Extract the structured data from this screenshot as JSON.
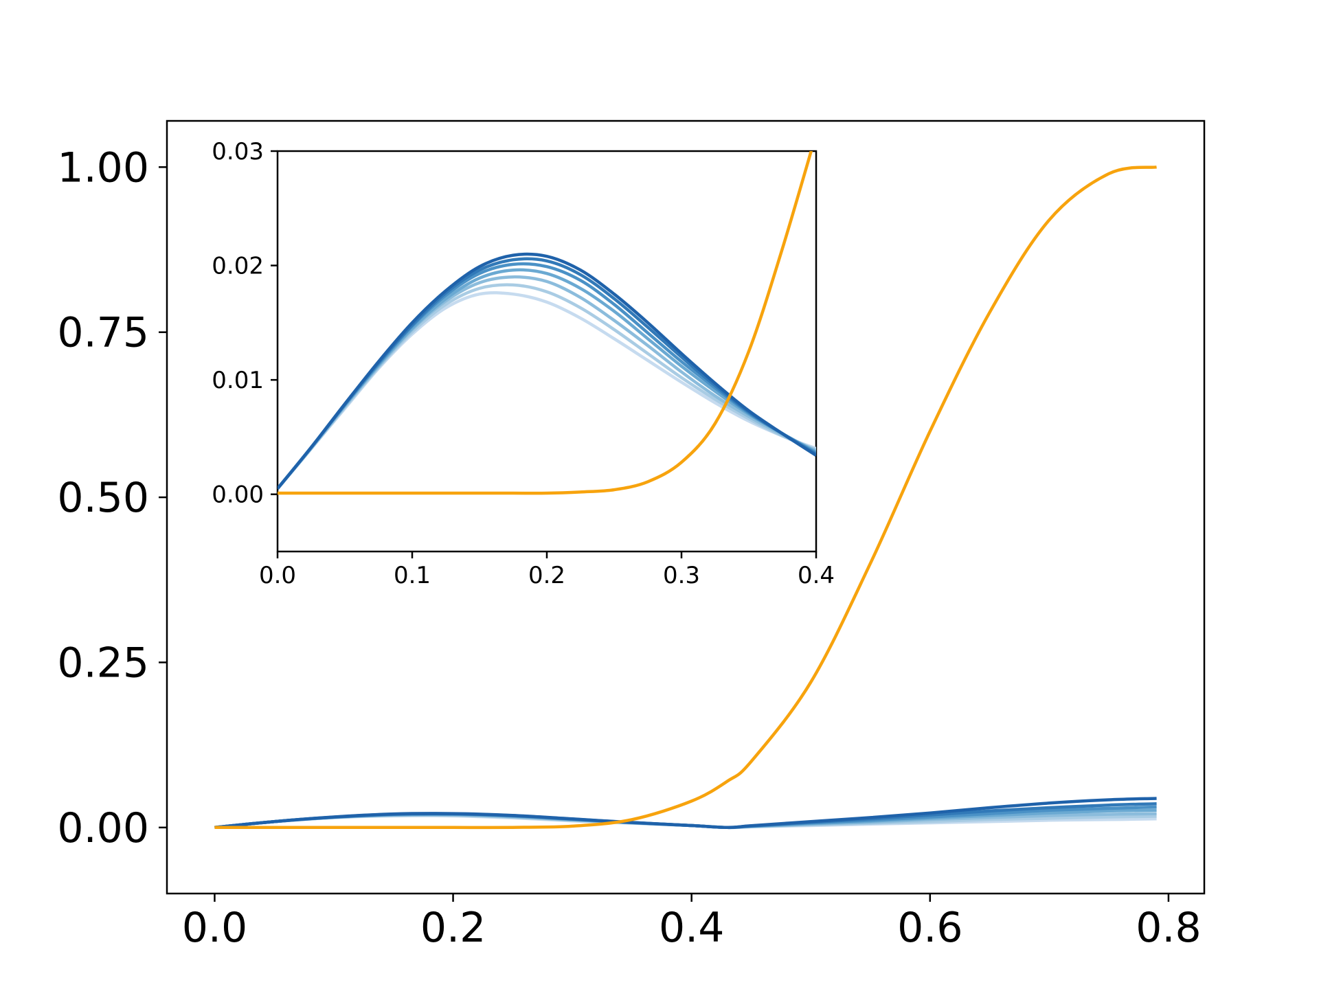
{
  "chart_data": [
    {
      "type": "line",
      "title": "",
      "xlabel": "",
      "ylabel": "",
      "xlim": [
        -0.04,
        0.83
      ],
      "ylim": [
        -0.1,
        1.07
      ],
      "xticks": [
        "0.0",
        "0.2",
        "0.4",
        "0.6",
        "0.8"
      ],
      "yticks": [
        "0.00",
        "0.25",
        "0.50",
        "0.75",
        "1.00"
      ],
      "grid": false,
      "legend": "none",
      "x": [
        0.0,
        0.05,
        0.1,
        0.15,
        0.2,
        0.25,
        0.3,
        0.35,
        0.4,
        0.43,
        0.45,
        0.5,
        0.55,
        0.6,
        0.65,
        0.7,
        0.75,
        0.79
      ],
      "series": [
        {
          "color": "#f7a30d",
          "values": [
            0.0,
            0.0,
            0.0,
            0.0,
            0.0,
            0.0002,
            0.002,
            0.012,
            0.04,
            0.07,
            0.1,
            0.22,
            0.4,
            0.6,
            0.78,
            0.92,
            0.99,
            1.0
          ]
        },
        {
          "color": "#c6dbef",
          "values": [
            0.0,
            0.009,
            0.015,
            0.0175,
            0.0175,
            0.0145,
            0.01,
            0.0065,
            0.003,
            0.0,
            0.001,
            0.003,
            0.005,
            0.007,
            0.009,
            0.011,
            0.012,
            0.013
          ]
        },
        {
          "color": "#a9cce4",
          "values": [
            0.0,
            0.009,
            0.015,
            0.0182,
            0.0184,
            0.0155,
            0.0108,
            0.0068,
            0.003,
            0.0,
            0.0012,
            0.004,
            0.0065,
            0.009,
            0.012,
            0.014,
            0.016,
            0.017
          ]
        },
        {
          "color": "#8bbcdc",
          "values": [
            0.0,
            0.009,
            0.0152,
            0.0188,
            0.0192,
            0.0163,
            0.0115,
            0.007,
            0.003,
            0.0,
            0.0015,
            0.005,
            0.008,
            0.012,
            0.015,
            0.018,
            0.02,
            0.021
          ]
        },
        {
          "color": "#6aa9d2",
          "values": [
            0.0,
            0.009,
            0.0154,
            0.0193,
            0.0198,
            0.017,
            0.012,
            0.0072,
            0.003,
            0.0,
            0.0018,
            0.006,
            0.0095,
            0.014,
            0.018,
            0.022,
            0.025,
            0.026
          ]
        },
        {
          "color": "#4a91c6",
          "values": [
            0.0,
            0.009,
            0.0156,
            0.0198,
            0.0203,
            0.0176,
            0.0125,
            0.0074,
            0.003,
            0.0,
            0.0021,
            0.007,
            0.011,
            0.016,
            0.021,
            0.026,
            0.029,
            0.031
          ]
        },
        {
          "color": "#3179b8",
          "values": [
            0.0,
            0.009,
            0.0158,
            0.0202,
            0.0207,
            0.018,
            0.0128,
            0.0075,
            0.003,
            0.0,
            0.0024,
            0.008,
            0.013,
            0.019,
            0.025,
            0.03,
            0.034,
            0.036
          ]
        },
        {
          "color": "#1f62aa",
          "values": [
            0.0,
            0.009,
            0.016,
            0.0205,
            0.0211,
            0.0184,
            0.013,
            0.0076,
            0.003,
            0.0,
            0.0027,
            0.009,
            0.015,
            0.022,
            0.03,
            0.037,
            0.042,
            0.044
          ]
        }
      ]
    },
    {
      "type": "line",
      "title": "",
      "xlabel": "",
      "ylabel": "",
      "xlim": [
        0.0,
        0.4
      ],
      "ylim": [
        -0.005,
        0.03
      ],
      "xticks": [
        "0.0",
        "0.1",
        "0.2",
        "0.3",
        "0.4"
      ],
      "yticks": [
        "0.00",
        "0.01",
        "0.02",
        "0.03"
      ],
      "grid": false,
      "legend": "none",
      "x": [
        0.0,
        0.025,
        0.05,
        0.075,
        0.1,
        0.125,
        0.15,
        0.175,
        0.2,
        0.225,
        0.25,
        0.275,
        0.3,
        0.325,
        0.35,
        0.375,
        0.4
      ],
      "series": [
        {
          "color": "#f7a30d",
          "values": [
            0.0001,
            0.0001,
            0.0001,
            0.0001,
            0.0001,
            0.0001,
            0.0001,
            0.0001,
            0.0001,
            0.0002,
            0.0004,
            0.0011,
            0.0028,
            0.0062,
            0.0125,
            0.0215,
            0.0315
          ]
        },
        {
          "color": "#c6dbef",
          "values": [
            0.0005,
            0.004,
            0.0075,
            0.011,
            0.014,
            0.0163,
            0.0175,
            0.0175,
            0.0168,
            0.0154,
            0.0136,
            0.0117,
            0.0098,
            0.008,
            0.0064,
            0.0051,
            0.004
          ]
        },
        {
          "color": "#a9cce4",
          "values": [
            0.0005,
            0.004,
            0.0076,
            0.0111,
            0.0142,
            0.0166,
            0.018,
            0.0183,
            0.0177,
            0.0163,
            0.0144,
            0.0123,
            0.0102,
            0.0083,
            0.0066,
            0.0051,
            0.0039
          ]
        },
        {
          "color": "#8bbcdc",
          "values": [
            0.0005,
            0.004,
            0.0077,
            0.0112,
            0.0144,
            0.0169,
            0.0185,
            0.019,
            0.0186,
            0.0172,
            0.0152,
            0.013,
            0.0107,
            0.0086,
            0.0068,
            0.0052,
            0.0038
          ]
        },
        {
          "color": "#6aa9d2",
          "values": [
            0.0005,
            0.0041,
            0.0078,
            0.0113,
            0.0145,
            0.0171,
            0.0189,
            0.0196,
            0.0193,
            0.018,
            0.016,
            0.0136,
            0.0112,
            0.009,
            0.007,
            0.0053,
            0.0037
          ]
        },
        {
          "color": "#4a91c6",
          "values": [
            0.0005,
            0.0041,
            0.0078,
            0.0114,
            0.0147,
            0.0174,
            0.0193,
            0.0201,
            0.0199,
            0.0187,
            0.0166,
            0.0141,
            0.0116,
            0.0093,
            0.0071,
            0.0053,
            0.0036
          ]
        },
        {
          "color": "#3179b8",
          "values": [
            0.0005,
            0.0041,
            0.0079,
            0.0115,
            0.0148,
            0.0176,
            0.0196,
            0.0205,
            0.0204,
            0.0192,
            0.0171,
            0.0146,
            0.012,
            0.0095,
            0.0072,
            0.0053,
            0.0035
          ]
        },
        {
          "color": "#1f62aa",
          "values": [
            0.0005,
            0.0041,
            0.0079,
            0.0116,
            0.015,
            0.0178,
            0.0199,
            0.0209,
            0.0208,
            0.0196,
            0.0175,
            0.015,
            0.0123,
            0.0097,
            0.0073,
            0.0053,
            0.0034
          ]
        }
      ]
    }
  ]
}
